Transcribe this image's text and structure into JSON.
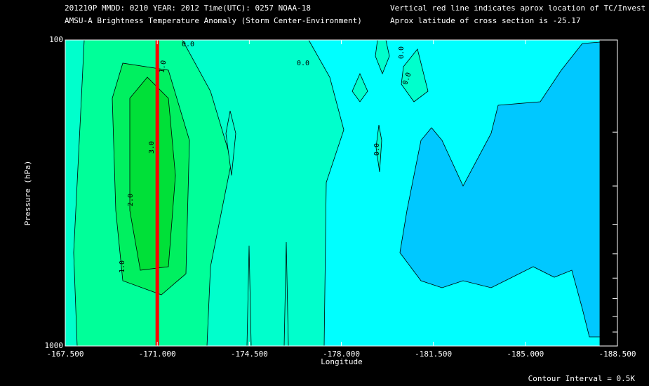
{
  "chart_data": {
    "type": "contour",
    "title_lines": [
      "201210P  MMDD: 0210 YEAR: 2012 Time(UTC): 0257 NOAA-18",
      "AMSU-A Brightness Temperature Anomaly (Storm Center-Environment)"
    ],
    "note_lines": [
      "Vertical red line indicates aprox location of TC/Invest",
      "Aprox latitude of cross section is -25.17"
    ],
    "xlabel": "Longitude",
    "ylabel": "Pressure (hPa)",
    "footer": "Contour Interval = 0.5K",
    "xlim": [
      -167.5,
      -188.5
    ],
    "ylim": [
      1000,
      100
    ],
    "ylog": true,
    "xticks": [
      {
        "value": -167.5,
        "label": "-167.500"
      },
      {
        "value": -171.0,
        "label": "-171.000"
      },
      {
        "value": -174.5,
        "label": "-174.500"
      },
      {
        "value": -178.0,
        "label": "-178.000"
      },
      {
        "value": -181.5,
        "label": "-181.500"
      },
      {
        "value": -185.0,
        "label": "-185.000"
      },
      {
        "value": -188.5,
        "label": "-188.500"
      }
    ],
    "yticks": [
      100,
      1000
    ],
    "yminor_ticks": [
      200,
      300,
      400,
      500,
      600,
      700,
      800,
      900
    ],
    "tc_longitude": -171.0,
    "tc_line_color": "#ff0000",
    "fills": [
      {
        "level": -0.5,
        "color": "#00c8ff"
      },
      {
        "level": 0.0,
        "color": "#00ffff"
      },
      {
        "level": 0.5,
        "color": "#00ffcc"
      },
      {
        "level": 1.0,
        "color": "#00ff99"
      },
      {
        "level": 2.0,
        "color": "#00f060"
      },
      {
        "level": 3.0,
        "color": "#00e038"
      }
    ],
    "contour_labels": [
      {
        "value": 0,
        "label": "0.0"
      },
      {
        "value": 0,
        "label": "0.0"
      },
      {
        "value": 0,
        "label": "0.0"
      },
      {
        "value": 0,
        "label": "0.0"
      },
      {
        "value": 0,
        "label": "0.0"
      },
      {
        "value": 1,
        "label": "1.0"
      },
      {
        "value": 1,
        "label": "1.0"
      },
      {
        "value": 2,
        "label": "2.0"
      },
      {
        "value": 3,
        "label": "3.0"
      }
    ]
  }
}
